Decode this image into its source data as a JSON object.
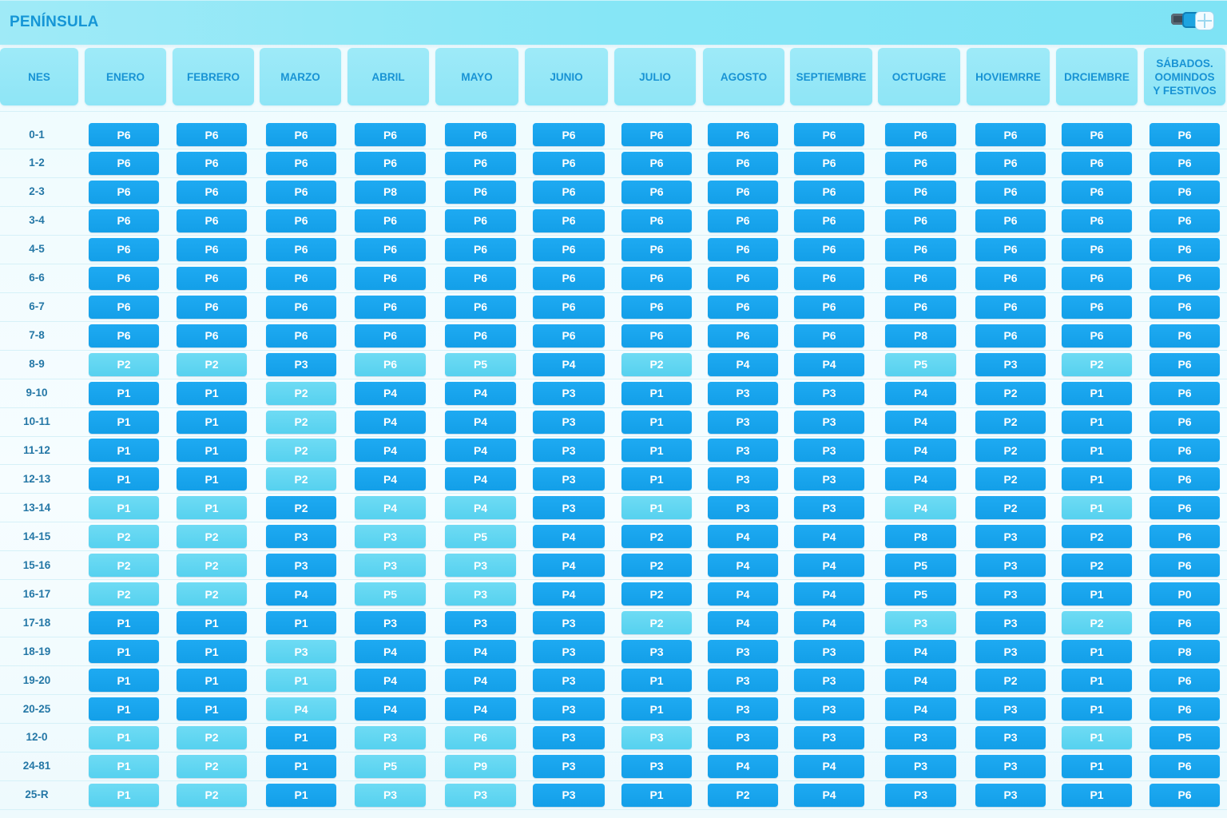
{
  "app_title": "PENÍNSULA",
  "header": {
    "hour_label": "NES",
    "months": [
      "ENERO",
      "FEBRERO",
      "MARZO",
      "ABRIL",
      "MAYO",
      "JUNIO",
      "JULIO",
      "AGOSTO",
      "SEPTIEMBRE",
      "OCTUGRE",
      "HOVIEMRRE",
      "DRCIEMBRE",
      "SÁBADOS.\nOOMINDOS\nY FESTIVOS"
    ]
  },
  "icons": [
    "window-icon-dark",
    "window-icon-blue",
    "window-icon-grid"
  ],
  "rows": [
    {
      "hour": "0-1",
      "cells": [
        [
          "P6",
          "dark"
        ],
        [
          "P6",
          "dark"
        ],
        [
          "P6",
          "dark"
        ],
        [
          "P6",
          "dark"
        ],
        [
          "P6",
          "dark"
        ],
        [
          "P6",
          "dark"
        ],
        [
          "P6",
          "dark"
        ],
        [
          "P6",
          "dark"
        ],
        [
          "P6",
          "dark"
        ],
        [
          "P6",
          "dark"
        ],
        [
          "P6",
          "dark"
        ],
        [
          "P6",
          "dark"
        ],
        [
          "P6",
          "dark"
        ]
      ]
    },
    {
      "hour": "1-2",
      "cells": [
        [
          "P6",
          "dark"
        ],
        [
          "P6",
          "dark"
        ],
        [
          "P6",
          "dark"
        ],
        [
          "P6",
          "dark"
        ],
        [
          "P6",
          "dark"
        ],
        [
          "P6",
          "dark"
        ],
        [
          "P6",
          "dark"
        ],
        [
          "P6",
          "dark"
        ],
        [
          "P6",
          "dark"
        ],
        [
          "P6",
          "dark"
        ],
        [
          "P6",
          "dark"
        ],
        [
          "P6",
          "dark"
        ],
        [
          "P6",
          "dark"
        ]
      ]
    },
    {
      "hour": "2-3",
      "cells": [
        [
          "P6",
          "dark"
        ],
        [
          "P6",
          "dark"
        ],
        [
          "P6",
          "dark"
        ],
        [
          "P8",
          "dark"
        ],
        [
          "P6",
          "dark"
        ],
        [
          "P6",
          "dark"
        ],
        [
          "P6",
          "dark"
        ],
        [
          "P6",
          "dark"
        ],
        [
          "P6",
          "dark"
        ],
        [
          "P6",
          "dark"
        ],
        [
          "P6",
          "dark"
        ],
        [
          "P6",
          "dark"
        ],
        [
          "P6",
          "dark"
        ]
      ]
    },
    {
      "hour": "3-4",
      "cells": [
        [
          "P6",
          "dark"
        ],
        [
          "P6",
          "dark"
        ],
        [
          "P6",
          "dark"
        ],
        [
          "P6",
          "dark"
        ],
        [
          "P6",
          "dark"
        ],
        [
          "P6",
          "dark"
        ],
        [
          "P6",
          "dark"
        ],
        [
          "P6",
          "dark"
        ],
        [
          "P6",
          "dark"
        ],
        [
          "P6",
          "dark"
        ],
        [
          "P6",
          "dark"
        ],
        [
          "P6",
          "dark"
        ],
        [
          "P6",
          "dark"
        ]
      ]
    },
    {
      "hour": "4-5",
      "cells": [
        [
          "P6",
          "dark"
        ],
        [
          "P6",
          "dark"
        ],
        [
          "P6",
          "dark"
        ],
        [
          "P6",
          "dark"
        ],
        [
          "P6",
          "dark"
        ],
        [
          "P6",
          "dark"
        ],
        [
          "P6",
          "dark"
        ],
        [
          "P6",
          "dark"
        ],
        [
          "P6",
          "dark"
        ],
        [
          "P6",
          "dark"
        ],
        [
          "P6",
          "dark"
        ],
        [
          "P6",
          "dark"
        ],
        [
          "P6",
          "dark"
        ]
      ]
    },
    {
      "hour": "6-6",
      "cells": [
        [
          "P6",
          "dark"
        ],
        [
          "P6",
          "dark"
        ],
        [
          "P6",
          "dark"
        ],
        [
          "P6",
          "dark"
        ],
        [
          "P6",
          "dark"
        ],
        [
          "P6",
          "dark"
        ],
        [
          "P6",
          "dark"
        ],
        [
          "P6",
          "dark"
        ],
        [
          "P6",
          "dark"
        ],
        [
          "P6",
          "dark"
        ],
        [
          "P6",
          "dark"
        ],
        [
          "P6",
          "dark"
        ],
        [
          "P6",
          "dark"
        ]
      ]
    },
    {
      "hour": "6-7",
      "cells": [
        [
          "P6",
          "dark"
        ],
        [
          "P6",
          "dark"
        ],
        [
          "P6",
          "dark"
        ],
        [
          "P6",
          "dark"
        ],
        [
          "P6",
          "dark"
        ],
        [
          "P6",
          "dark"
        ],
        [
          "P6",
          "dark"
        ],
        [
          "P6",
          "dark"
        ],
        [
          "P6",
          "dark"
        ],
        [
          "P6",
          "dark"
        ],
        [
          "P6",
          "dark"
        ],
        [
          "P6",
          "dark"
        ],
        [
          "P6",
          "dark"
        ]
      ]
    },
    {
      "hour": "7-8",
      "cells": [
        [
          "P6",
          "dark"
        ],
        [
          "P6",
          "dark"
        ],
        [
          "P6",
          "dark"
        ],
        [
          "P6",
          "dark"
        ],
        [
          "P6",
          "dark"
        ],
        [
          "P6",
          "dark"
        ],
        [
          "P6",
          "dark"
        ],
        [
          "P6",
          "dark"
        ],
        [
          "P6",
          "dark"
        ],
        [
          "P8",
          "dark"
        ],
        [
          "P6",
          "dark"
        ],
        [
          "P6",
          "dark"
        ],
        [
          "P6",
          "dark"
        ]
      ]
    },
    {
      "hour": "8-9",
      "cells": [
        [
          "P2",
          "light"
        ],
        [
          "P2",
          "light"
        ],
        [
          "P3",
          "dark"
        ],
        [
          "P6",
          "light"
        ],
        [
          "P5",
          "light"
        ],
        [
          "P4",
          "dark"
        ],
        [
          "P2",
          "light"
        ],
        [
          "P4",
          "dark"
        ],
        [
          "P4",
          "dark"
        ],
        [
          "P5",
          "light"
        ],
        [
          "P3",
          "dark"
        ],
        [
          "P2",
          "light"
        ],
        [
          "P6",
          "dark"
        ]
      ]
    },
    {
      "hour": "9-10",
      "cells": [
        [
          "P1",
          "dark"
        ],
        [
          "P1",
          "dark"
        ],
        [
          "P2",
          "light"
        ],
        [
          "P4",
          "dark"
        ],
        [
          "P4",
          "dark"
        ],
        [
          "P3",
          "dark"
        ],
        [
          "P1",
          "dark"
        ],
        [
          "P3",
          "dark"
        ],
        [
          "P3",
          "dark"
        ],
        [
          "P4",
          "dark"
        ],
        [
          "P2",
          "dark"
        ],
        [
          "P1",
          "dark"
        ],
        [
          "P6",
          "dark"
        ]
      ]
    },
    {
      "hour": "10-11",
      "cells": [
        [
          "P1",
          "dark"
        ],
        [
          "P1",
          "dark"
        ],
        [
          "P2",
          "light"
        ],
        [
          "P4",
          "dark"
        ],
        [
          "P4",
          "dark"
        ],
        [
          "P3",
          "dark"
        ],
        [
          "P1",
          "dark"
        ],
        [
          "P3",
          "dark"
        ],
        [
          "P3",
          "dark"
        ],
        [
          "P4",
          "dark"
        ],
        [
          "P2",
          "dark"
        ],
        [
          "P1",
          "dark"
        ],
        [
          "P6",
          "dark"
        ]
      ]
    },
    {
      "hour": "11-12",
      "cells": [
        [
          "P1",
          "dark"
        ],
        [
          "P1",
          "dark"
        ],
        [
          "P2",
          "light"
        ],
        [
          "P4",
          "dark"
        ],
        [
          "P4",
          "dark"
        ],
        [
          "P3",
          "dark"
        ],
        [
          "P1",
          "dark"
        ],
        [
          "P3",
          "dark"
        ],
        [
          "P3",
          "dark"
        ],
        [
          "P4",
          "dark"
        ],
        [
          "P2",
          "dark"
        ],
        [
          "P1",
          "dark"
        ],
        [
          "P6",
          "dark"
        ]
      ]
    },
    {
      "hour": "12-13",
      "cells": [
        [
          "P1",
          "dark"
        ],
        [
          "P1",
          "dark"
        ],
        [
          "P2",
          "light"
        ],
        [
          "P4",
          "dark"
        ],
        [
          "P4",
          "dark"
        ],
        [
          "P3",
          "dark"
        ],
        [
          "P1",
          "dark"
        ],
        [
          "P3",
          "dark"
        ],
        [
          "P3",
          "dark"
        ],
        [
          "P4",
          "dark"
        ],
        [
          "P2",
          "dark"
        ],
        [
          "P1",
          "dark"
        ],
        [
          "P6",
          "dark"
        ]
      ]
    },
    {
      "hour": "13-14",
      "cells": [
        [
          "P1",
          "light"
        ],
        [
          "P1",
          "light"
        ],
        [
          "P2",
          "dark"
        ],
        [
          "P4",
          "light"
        ],
        [
          "P4",
          "light"
        ],
        [
          "P3",
          "dark"
        ],
        [
          "P1",
          "light"
        ],
        [
          "P3",
          "dark"
        ],
        [
          "P3",
          "dark"
        ],
        [
          "P4",
          "light"
        ],
        [
          "P2",
          "dark"
        ],
        [
          "P1",
          "light"
        ],
        [
          "P6",
          "dark"
        ]
      ]
    },
    {
      "hour": "14-15",
      "cells": [
        [
          "P2",
          "light"
        ],
        [
          "P2",
          "light"
        ],
        [
          "P3",
          "dark"
        ],
        [
          "P3",
          "light"
        ],
        [
          "P5",
          "light"
        ],
        [
          "P4",
          "dark"
        ],
        [
          "P2",
          "dark"
        ],
        [
          "P4",
          "dark"
        ],
        [
          "P4",
          "dark"
        ],
        [
          "P8",
          "dark"
        ],
        [
          "P3",
          "dark"
        ],
        [
          "P2",
          "dark"
        ],
        [
          "P6",
          "dark"
        ]
      ]
    },
    {
      "hour": "15-16",
      "cells": [
        [
          "P2",
          "light"
        ],
        [
          "P2",
          "light"
        ],
        [
          "P3",
          "dark"
        ],
        [
          "P3",
          "light"
        ],
        [
          "P3",
          "light"
        ],
        [
          "P4",
          "dark"
        ],
        [
          "P2",
          "dark"
        ],
        [
          "P4",
          "dark"
        ],
        [
          "P4",
          "dark"
        ],
        [
          "P5",
          "dark"
        ],
        [
          "P3",
          "dark"
        ],
        [
          "P2",
          "dark"
        ],
        [
          "P6",
          "dark"
        ]
      ]
    },
    {
      "hour": "16-17",
      "cells": [
        [
          "P2",
          "light"
        ],
        [
          "P2",
          "light"
        ],
        [
          "P4",
          "dark"
        ],
        [
          "P5",
          "light"
        ],
        [
          "P3",
          "light"
        ],
        [
          "P4",
          "dark"
        ],
        [
          "P2",
          "dark"
        ],
        [
          "P4",
          "dark"
        ],
        [
          "P4",
          "dark"
        ],
        [
          "P5",
          "dark"
        ],
        [
          "P3",
          "dark"
        ],
        [
          "P1",
          "dark"
        ],
        [
          "P0",
          "dark"
        ]
      ]
    },
    {
      "hour": "17-18",
      "cells": [
        [
          "P1",
          "dark"
        ],
        [
          "P1",
          "dark"
        ],
        [
          "P1",
          "dark"
        ],
        [
          "P3",
          "dark"
        ],
        [
          "P3",
          "dark"
        ],
        [
          "P3",
          "dark"
        ],
        [
          "P2",
          "light"
        ],
        [
          "P4",
          "dark"
        ],
        [
          "P4",
          "dark"
        ],
        [
          "P3",
          "light"
        ],
        [
          "P3",
          "dark"
        ],
        [
          "P2",
          "light"
        ],
        [
          "P6",
          "dark"
        ]
      ]
    },
    {
      "hour": "18-19",
      "cells": [
        [
          "P1",
          "dark"
        ],
        [
          "P1",
          "dark"
        ],
        [
          "P3",
          "light"
        ],
        [
          "P4",
          "dark"
        ],
        [
          "P4",
          "dark"
        ],
        [
          "P3",
          "dark"
        ],
        [
          "P3",
          "dark"
        ],
        [
          "P3",
          "dark"
        ],
        [
          "P3",
          "dark"
        ],
        [
          "P4",
          "dark"
        ],
        [
          "P3",
          "dark"
        ],
        [
          "P1",
          "dark"
        ],
        [
          "P8",
          "dark"
        ]
      ]
    },
    {
      "hour": "19-20",
      "cells": [
        [
          "P1",
          "dark"
        ],
        [
          "P1",
          "dark"
        ],
        [
          "P1",
          "light"
        ],
        [
          "P4",
          "dark"
        ],
        [
          "P4",
          "dark"
        ],
        [
          "P3",
          "dark"
        ],
        [
          "P1",
          "dark"
        ],
        [
          "P3",
          "dark"
        ],
        [
          "P3",
          "dark"
        ],
        [
          "P4",
          "dark"
        ],
        [
          "P2",
          "dark"
        ],
        [
          "P1",
          "dark"
        ],
        [
          "P6",
          "dark"
        ]
      ]
    },
    {
      "hour": "20-25",
      "cells": [
        [
          "P1",
          "dark"
        ],
        [
          "P1",
          "dark"
        ],
        [
          "P4",
          "light"
        ],
        [
          "P4",
          "dark"
        ],
        [
          "P4",
          "dark"
        ],
        [
          "P3",
          "dark"
        ],
        [
          "P1",
          "dark"
        ],
        [
          "P3",
          "dark"
        ],
        [
          "P3",
          "dark"
        ],
        [
          "P4",
          "dark"
        ],
        [
          "P3",
          "dark"
        ],
        [
          "P1",
          "dark"
        ],
        [
          "P6",
          "dark"
        ]
      ]
    },
    {
      "hour": "12-0",
      "cells": [
        [
          "P1",
          "light"
        ],
        [
          "P2",
          "light"
        ],
        [
          "P1",
          "dark"
        ],
        [
          "P3",
          "light"
        ],
        [
          "P6",
          "light"
        ],
        [
          "P3",
          "dark"
        ],
        [
          "P3",
          "light"
        ],
        [
          "P3",
          "dark"
        ],
        [
          "P3",
          "dark"
        ],
        [
          "P3",
          "dark"
        ],
        [
          "P3",
          "dark"
        ],
        [
          "P1",
          "light"
        ],
        [
          "P5",
          "dark"
        ]
      ]
    },
    {
      "hour": "24-81",
      "cells": [
        [
          "P1",
          "light"
        ],
        [
          "P2",
          "light"
        ],
        [
          "P1",
          "dark"
        ],
        [
          "P5",
          "light"
        ],
        [
          "P9",
          "light"
        ],
        [
          "P3",
          "dark"
        ],
        [
          "P3",
          "dark"
        ],
        [
          "P4",
          "dark"
        ],
        [
          "P4",
          "dark"
        ],
        [
          "P3",
          "dark"
        ],
        [
          "P3",
          "dark"
        ],
        [
          "P1",
          "dark"
        ],
        [
          "P6",
          "dark"
        ]
      ]
    },
    {
      "hour": "25-R",
      "cells": [
        [
          "P1",
          "light"
        ],
        [
          "P2",
          "light"
        ],
        [
          "P1",
          "dark"
        ],
        [
          "P3",
          "light"
        ],
        [
          "P3",
          "light"
        ],
        [
          "P3",
          "dark"
        ],
        [
          "P1",
          "dark"
        ],
        [
          "P2",
          "dark"
        ],
        [
          "P4",
          "dark"
        ],
        [
          "P3",
          "dark"
        ],
        [
          "P3",
          "dark"
        ],
        [
          "P1",
          "dark"
        ],
        [
          "P6",
          "dark"
        ]
      ]
    }
  ]
}
